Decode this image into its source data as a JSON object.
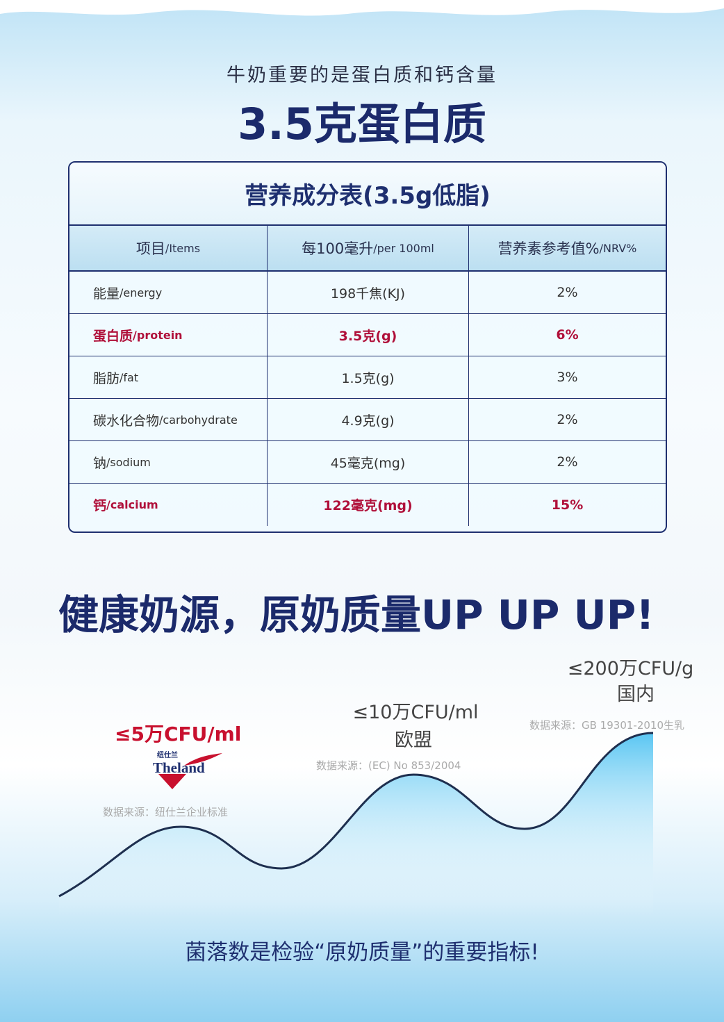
{
  "header": {
    "subtitle": "牛奶重要的是蛋白质和钙含量",
    "title": "3.5克蛋白质"
  },
  "table": {
    "title": "营养成分表(3.5g低脂)",
    "columns": [
      {
        "cn": "项目",
        "en": "/Items"
      },
      {
        "cn": "每100毫升",
        "en": "/per 100ml"
      },
      {
        "cn": "营养素参考值%",
        "en": "/NRV%"
      }
    ],
    "rows": [
      {
        "cn": "能量",
        "en": "/energy",
        "amount": "198千焦(KJ)",
        "nrv": "2%",
        "highlight": false
      },
      {
        "cn": "蛋白质",
        "en": "/protein",
        "amount": "3.5克(g)",
        "nrv": "6%",
        "highlight": true
      },
      {
        "cn": "脂肪",
        "en": "/fat",
        "amount": "1.5克(g)",
        "nrv": "3%",
        "highlight": false
      },
      {
        "cn": "碳水化合物",
        "en": "/carbohydrate",
        "amount": "4.9克(g)",
        "nrv": "2%",
        "highlight": false
      },
      {
        "cn": "钠",
        "en": "/sodium",
        "amount": "45毫克(mg)",
        "nrv": "2%",
        "highlight": false
      },
      {
        "cn": "钙",
        "en": "/calcium",
        "amount": "122毫克(mg)",
        "nrv": "15%",
        "highlight": true
      }
    ]
  },
  "slogan": "健康奶源，原奶质量UP UP UP!",
  "comparison": {
    "theland": {
      "limit": "≤5万CFU/ml",
      "logo_cn": "纽仕兰",
      "logo_en": "Theland",
      "source": "数据来源：纽仕兰企业标准"
    },
    "eu": {
      "limit": "≤10万CFU/ml",
      "region": "欧盟",
      "source": "数据来源：(EC) No 853/2004"
    },
    "china": {
      "limit": "≤200万CFU/g",
      "region": "国内",
      "source": "数据来源：GB 19301-2010生乳"
    }
  },
  "footer": "菌落数是检验“原奶质量”的重要指标!",
  "colors": {
    "navy": "#1b2a6b",
    "red": "#b0103a",
    "wave": "#4cc0ee"
  }
}
